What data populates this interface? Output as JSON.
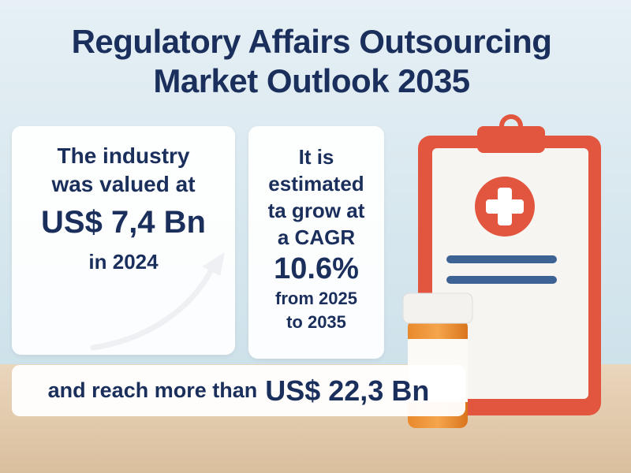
{
  "title": {
    "lines": [
      "Regulatory Affairs Outsourcing",
      "Market Outlook 2035"
    ]
  },
  "cards": [
    {
      "lead": [
        "The industry",
        "was valued at"
      ],
      "highlight": "US$ 7,4 Bn",
      "tail": [
        "in 2024"
      ]
    },
    {
      "lead": [
        "It is",
        "estimated",
        "ta grow at",
        "a CAGR"
      ],
      "highlight": "10.6%",
      "tail": [
        "from 2025",
        "to 2035"
      ]
    }
  ],
  "footer": {
    "lead": "and reach more than",
    "highlight": "US$ 22,3 Bn"
  }
}
